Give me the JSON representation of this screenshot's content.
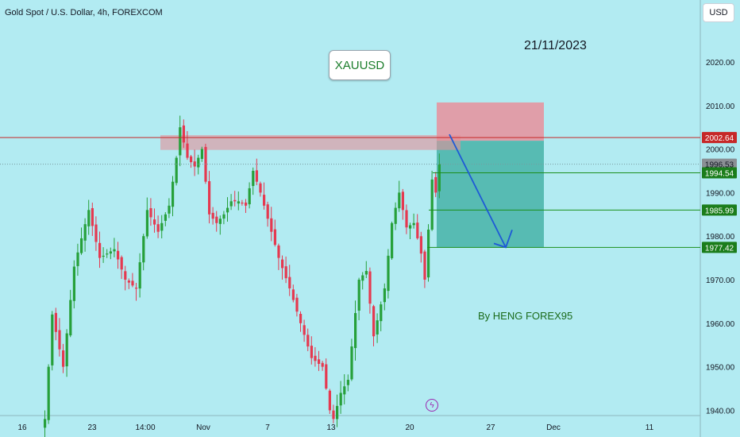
{
  "header": {
    "symbol_title": "Gold Spot / U.S. Dollar, 4h, FOREXCOM",
    "currency": "USD"
  },
  "annotations": {
    "symbol_badge": "XAUUSD",
    "date_note": "21/11/2023",
    "author_note": "By HENG FOREX95"
  },
  "icons": {
    "event": "lightning-icon"
  },
  "colors": {
    "background": "#b2ebf2",
    "up_candle": "#26a03a",
    "down_candle": "#e53950",
    "resistance_line": "#c62828",
    "target_line": "#1b8e1b",
    "stop_zone": "#e8909c",
    "profit_zone": "#4db6ac",
    "arrow": "#1e5ad6"
  },
  "chart_data": {
    "type": "candlestick",
    "title": "Gold Spot / U.S. Dollar, 4h, FOREXCOM",
    "ylim": [
      1937,
      2027
    ],
    "y_ticks": [
      "2020.00",
      "2010.00",
      "2000.00",
      "1990.00",
      "1980.00",
      "1970.00",
      "1960.00",
      "1950.00",
      "1940.00"
    ],
    "x_ticks": [
      "16",
      "23",
      "14:00",
      "Nov",
      "7",
      "13",
      "20",
      "27",
      "Dec",
      "11"
    ],
    "price_labels": [
      {
        "value": "2002.64",
        "style": "resistance"
      },
      {
        "value": "1996.53",
        "style": "current"
      },
      {
        "value": "1994.54",
        "style": "level"
      },
      {
        "value": "1985.99",
        "style": "level"
      },
      {
        "value": "1977.42",
        "style": "level"
      }
    ],
    "levels": {
      "resistance": 2002.64,
      "current": 1996.53,
      "entry": 1994.54,
      "tp1": 1985.99,
      "tp2": 1977.42,
      "stop_top": 2010.7,
      "resistance_zone": [
        1999.8,
        2003.2
      ]
    },
    "anchors": [
      {
        "i": 0,
        "p": 1938
      },
      {
        "i": 2,
        "p": 1962
      },
      {
        "i": 5,
        "p": 1950
      },
      {
        "i": 8,
        "p": 1973
      },
      {
        "i": 12,
        "p": 1986
      },
      {
        "i": 15,
        "p": 1975
      },
      {
        "i": 19,
        "p": 1977
      },
      {
        "i": 22,
        "p": 1970
      },
      {
        "i": 25,
        "p": 1968
      },
      {
        "i": 28,
        "p": 1986
      },
      {
        "i": 31,
        "p": 1981
      },
      {
        "i": 34,
        "p": 1987
      },
      {
        "i": 36,
        "p": 1998
      },
      {
        "i": 37,
        "p": 2005
      },
      {
        "i": 39,
        "p": 1998
      },
      {
        "i": 41,
        "p": 1996
      },
      {
        "i": 43,
        "p": 2000
      },
      {
        "i": 45,
        "p": 1985
      },
      {
        "i": 47,
        "p": 1983
      },
      {
        "i": 49,
        "p": 1985
      },
      {
        "i": 51,
        "p": 1988
      },
      {
        "i": 53,
        "p": 1988
      },
      {
        "i": 55,
        "p": 1987
      },
      {
        "i": 57,
        "p": 1995
      },
      {
        "i": 59,
        "p": 1990
      },
      {
        "i": 61,
        "p": 1984
      },
      {
        "i": 64,
        "p": 1975
      },
      {
        "i": 67,
        "p": 1968
      },
      {
        "i": 70,
        "p": 1960
      },
      {
        "i": 73,
        "p": 1952
      },
      {
        "i": 76,
        "p": 1950
      },
      {
        "i": 78,
        "p": 1940
      },
      {
        "i": 79,
        "p": 1938
      },
      {
        "i": 81,
        "p": 1944
      },
      {
        "i": 83,
        "p": 1947
      },
      {
        "i": 86,
        "p": 1970
      },
      {
        "i": 88,
        "p": 1972
      },
      {
        "i": 90,
        "p": 1957
      },
      {
        "i": 93,
        "p": 1968
      },
      {
        "i": 95,
        "p": 1983
      },
      {
        "i": 97,
        "p": 1990
      },
      {
        "i": 99,
        "p": 1982
      },
      {
        "i": 101,
        "p": 1983
      },
      {
        "i": 103,
        "p": 1976
      },
      {
        "i": 104,
        "p": 1970
      },
      {
        "i": 106,
        "p": 1993
      },
      {
        "i": 107,
        "p": 1990
      },
      {
        "i": 108,
        "p": 1996.53
      }
    ]
  }
}
